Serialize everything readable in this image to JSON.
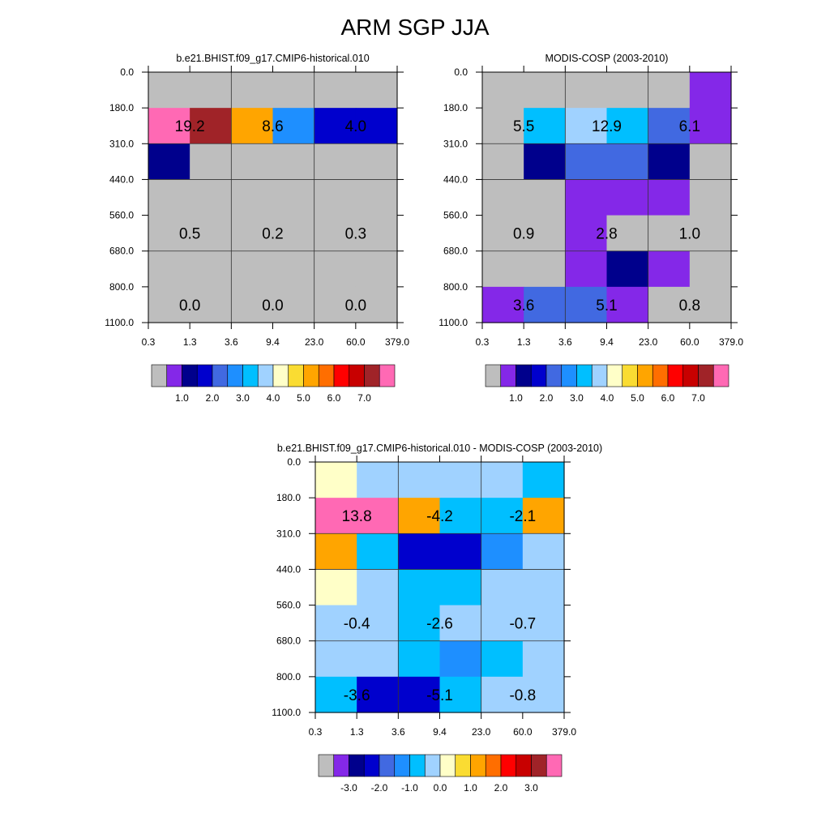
{
  "title": "ARM SGP JJA",
  "palette": {
    "gray": "#bebebe",
    "purple": "#8428e8",
    "navy": "#00008c",
    "darkblue": "#0000cd",
    "royalblue": "#4169e1",
    "dodgerblue": "#1e8fff",
    "deepskyblue": "#00bfff",
    "lightskyblue": "#a0d2ff",
    "lightyellow": "#ffffc8",
    "gold": "#fadc32",
    "orange": "#ffa500",
    "darkorange": "#ff6e00",
    "red": "#ff0000",
    "firebrick": "#c80000",
    "brown": "#a02328",
    "hotpink": "#ff69b4"
  },
  "chart_data": [
    {
      "type": "heatmap",
      "title": "b.e21.BHIST.f09_g17.CMIP6-historical.010",
      "x_ticks": [
        "0.3",
        "1.3",
        "3.6",
        "9.4",
        "23.0",
        "60.0",
        "379.0"
      ],
      "y_ticks": [
        "0.0",
        "180.0",
        "310.0",
        "440.0",
        "560.0",
        "680.0",
        "800.0",
        "1100.0"
      ],
      "cells": [
        [
          "gray",
          "gray",
          "gray",
          "gray",
          "gray",
          "gray"
        ],
        [
          "hotpink",
          "brown",
          "orange",
          "dodgerblue",
          "darkblue",
          "darkblue"
        ],
        [
          "navy",
          "gray",
          "gray",
          "gray",
          "gray",
          "gray"
        ],
        [
          "gray",
          "gray",
          "gray",
          "gray",
          "gray",
          "gray"
        ],
        [
          "gray",
          "gray",
          "gray",
          "gray",
          "gray",
          "gray"
        ],
        [
          "gray",
          "gray",
          "gray",
          "gray",
          "gray",
          "gray"
        ],
        [
          "gray",
          "gray",
          "gray",
          "gray",
          "gray",
          "gray"
        ]
      ],
      "annotations": [
        {
          "label": "19.2",
          "col": 0,
          "row": 1
        },
        {
          "label": "8.6",
          "col": 1,
          "row": 1
        },
        {
          "label": "4.0",
          "col": 2,
          "row": 1
        },
        {
          "label": "0.5",
          "col": 0,
          "row": 4
        },
        {
          "label": "0.2",
          "col": 1,
          "row": 4
        },
        {
          "label": "0.3",
          "col": 2,
          "row": 4
        },
        {
          "label": "0.0",
          "col": 0,
          "row": 6
        },
        {
          "label": "0.0",
          "col": 1,
          "row": 6
        },
        {
          "label": "0.0",
          "col": 2,
          "row": 6
        }
      ],
      "colorbar": {
        "colors": [
          "gray",
          "purple",
          "navy",
          "darkblue",
          "royalblue",
          "dodgerblue",
          "deepskyblue",
          "lightskyblue",
          "lightyellow",
          "gold",
          "orange",
          "darkorange",
          "red",
          "firebrick",
          "brown",
          "hotpink"
        ],
        "labels": [
          "1.0",
          "2.0",
          "3.0",
          "4.0",
          "5.0",
          "6.0",
          "7.0"
        ],
        "label_boundaries": [
          2,
          4,
          6,
          8,
          10,
          12,
          14
        ]
      }
    },
    {
      "type": "heatmap",
      "title": "MODIS-COSP (2003-2010)",
      "x_ticks": [
        "0.3",
        "1.3",
        "3.6",
        "9.4",
        "23.0",
        "60.0",
        "379.0"
      ],
      "y_ticks": [
        "0.0",
        "180.0",
        "310.0",
        "440.0",
        "560.0",
        "680.0",
        "800.0",
        "1100.0"
      ],
      "cells": [
        [
          "gray",
          "gray",
          "gray",
          "gray",
          "gray",
          "purple"
        ],
        [
          "gray",
          "deepskyblue",
          "lightskyblue",
          "deepskyblue",
          "royalblue",
          "purple"
        ],
        [
          "gray",
          "navy",
          "royalblue",
          "royalblue",
          "navy",
          "gray"
        ],
        [
          "gray",
          "gray",
          "purple",
          "purple",
          "purple",
          "gray"
        ],
        [
          "gray",
          "gray",
          "purple",
          "gray",
          "gray",
          "gray"
        ],
        [
          "gray",
          "gray",
          "purple",
          "navy",
          "purple",
          "gray"
        ],
        [
          "purple",
          "royalblue",
          "royalblue",
          "purple",
          "gray",
          "gray"
        ]
      ],
      "annotations": [
        {
          "label": "5.5",
          "col": 0,
          "row": 1
        },
        {
          "label": "12.9",
          "col": 1,
          "row": 1
        },
        {
          "label": "6.1",
          "col": 2,
          "row": 1
        },
        {
          "label": "0.9",
          "col": 0,
          "row": 4
        },
        {
          "label": "2.8",
          "col": 1,
          "row": 4
        },
        {
          "label": "1.0",
          "col": 2,
          "row": 4
        },
        {
          "label": "3.6",
          "col": 0,
          "row": 6
        },
        {
          "label": "5.1",
          "col": 1,
          "row": 6
        },
        {
          "label": "0.8",
          "col": 2,
          "row": 6
        }
      ],
      "colorbar": {
        "colors": [
          "gray",
          "purple",
          "navy",
          "darkblue",
          "royalblue",
          "dodgerblue",
          "deepskyblue",
          "lightskyblue",
          "lightyellow",
          "gold",
          "orange",
          "darkorange",
          "red",
          "firebrick",
          "brown",
          "hotpink"
        ],
        "labels": [
          "1.0",
          "2.0",
          "3.0",
          "4.0",
          "5.0",
          "6.0",
          "7.0"
        ],
        "label_boundaries": [
          2,
          4,
          6,
          8,
          10,
          12,
          14
        ]
      }
    },
    {
      "type": "heatmap",
      "title": "b.e21.BHIST.f09_g17.CMIP6-historical.010 - MODIS-COSP (2003-2010)",
      "x_ticks": [
        "0.3",
        "1.3",
        "3.6",
        "9.4",
        "23.0",
        "60.0",
        "379.0"
      ],
      "y_ticks": [
        "0.0",
        "180.0",
        "310.0",
        "440.0",
        "560.0",
        "680.0",
        "800.0",
        "1100.0"
      ],
      "cells": [
        [
          "lightyellow",
          "lightskyblue",
          "lightskyblue",
          "lightskyblue",
          "lightskyblue",
          "deepskyblue"
        ],
        [
          "hotpink",
          "hotpink",
          "orange",
          "deepskyblue",
          "deepskyblue",
          "orange"
        ],
        [
          "orange",
          "deepskyblue",
          "darkblue",
          "darkblue",
          "dodgerblue",
          "lightskyblue"
        ],
        [
          "lightyellow",
          "lightskyblue",
          "deepskyblue",
          "deepskyblue",
          "lightskyblue",
          "lightskyblue"
        ],
        [
          "lightskyblue",
          "lightskyblue",
          "deepskyblue",
          "lightskyblue",
          "lightskyblue",
          "lightskyblue"
        ],
        [
          "lightskyblue",
          "lightskyblue",
          "deepskyblue",
          "dodgerblue",
          "deepskyblue",
          "lightskyblue"
        ],
        [
          "deepskyblue",
          "darkblue",
          "darkblue",
          "deepskyblue",
          "lightskyblue",
          "lightskyblue"
        ]
      ],
      "annotations": [
        {
          "label": "13.8",
          "col": 0,
          "row": 1
        },
        {
          "label": "-4.2",
          "col": 1,
          "row": 1
        },
        {
          "label": "-2.1",
          "col": 2,
          "row": 1
        },
        {
          "label": "-0.4",
          "col": 0,
          "row": 4
        },
        {
          "label": "-2.6",
          "col": 1,
          "row": 4
        },
        {
          "label": "-0.7",
          "col": 2,
          "row": 4
        },
        {
          "label": "-3.6",
          "col": 0,
          "row": 6
        },
        {
          "label": "-5.1",
          "col": 1,
          "row": 6
        },
        {
          "label": "-0.8",
          "col": 2,
          "row": 6
        }
      ],
      "colorbar": {
        "colors": [
          "gray",
          "purple",
          "navy",
          "darkblue",
          "royalblue",
          "dodgerblue",
          "deepskyblue",
          "lightskyblue",
          "lightyellow",
          "gold",
          "orange",
          "darkorange",
          "red",
          "firebrick",
          "brown",
          "hotpink"
        ],
        "labels": [
          "-3.0",
          "-2.0",
          "-1.0",
          "0.0",
          "1.0",
          "2.0",
          "3.0"
        ],
        "label_boundaries": [
          2,
          4,
          6,
          8,
          10,
          12,
          14
        ]
      }
    }
  ]
}
